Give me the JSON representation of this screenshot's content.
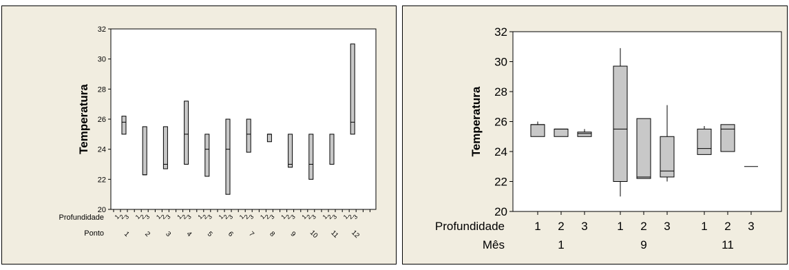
{
  "chart_data": [
    {
      "type": "boxplot",
      "ylabel": "Temperatura",
      "ylim": [
        20,
        32
      ],
      "yticks": [
        20,
        22,
        24,
        26,
        28,
        30,
        32
      ],
      "row_labels": [
        "Profundidade",
        "Ponto"
      ],
      "depth_levels": [
        "1",
        "2",
        "3"
      ],
      "points": [
        "1",
        "2",
        "3",
        "4",
        "5",
        "6",
        "7",
        "8",
        "9",
        "10",
        "11",
        "12"
      ],
      "boxes": [
        {
          "ponto": "1",
          "min": 25.0,
          "q1": 25.0,
          "median": 25.8,
          "q3": 26.2,
          "max": 26.2
        },
        {
          "ponto": "2",
          "min": 22.3,
          "q1": 22.3,
          "median": 22.3,
          "q3": 25.5,
          "max": 25.5
        },
        {
          "ponto": "3",
          "min": 22.7,
          "q1": 22.7,
          "median": 23.0,
          "q3": 25.5,
          "max": 25.5
        },
        {
          "ponto": "4",
          "min": 23.0,
          "q1": 23.0,
          "median": 25.0,
          "q3": 27.2,
          "max": 27.2
        },
        {
          "ponto": "5",
          "min": 22.2,
          "q1": 22.2,
          "median": 24.0,
          "q3": 25.0,
          "max": 25.0
        },
        {
          "ponto": "6",
          "min": 21.0,
          "q1": 21.0,
          "median": 24.0,
          "q3": 26.0,
          "max": 26.0
        },
        {
          "ponto": "7",
          "min": 23.8,
          "q1": 23.8,
          "median": 25.0,
          "q3": 26.0,
          "max": 26.0
        },
        {
          "ponto": "8",
          "min": 24.5,
          "q1": 24.5,
          "median": 25.0,
          "q3": 25.0,
          "max": 25.0
        },
        {
          "ponto": "9",
          "min": 22.8,
          "q1": 22.8,
          "median": 23.0,
          "q3": 25.0,
          "max": 25.0
        },
        {
          "ponto": "10",
          "min": 22.0,
          "q1": 22.0,
          "median": 23.0,
          "q3": 25.0,
          "max": 25.0
        },
        {
          "ponto": "11",
          "min": 23.0,
          "q1": 23.0,
          "median": 23.0,
          "q3": 25.0,
          "max": 25.0
        },
        {
          "ponto": "12",
          "min": 25.0,
          "q1": 25.0,
          "median": 25.8,
          "q3": 31.0,
          "max": 31.0
        }
      ]
    },
    {
      "type": "boxplot",
      "ylabel": "Temperatura",
      "ylim": [
        20,
        32
      ],
      "yticks": [
        20,
        22,
        24,
        26,
        28,
        30,
        32
      ],
      "row_labels": [
        "Profundidade",
        "Mês"
      ],
      "groups": [
        "1",
        "9",
        "11"
      ],
      "depth_levels": [
        "1",
        "2",
        "3"
      ],
      "boxes": [
        {
          "mes": "1",
          "profundidade": "1",
          "min": 25.0,
          "q1": 25.0,
          "median": 25.8,
          "q3": 25.8,
          "max": 26.0
        },
        {
          "mes": "1",
          "profundidade": "2",
          "min": 25.0,
          "q1": 25.0,
          "median": 25.5,
          "q3": 25.5,
          "max": 25.5
        },
        {
          "mes": "1",
          "profundidade": "3",
          "min": 25.0,
          "q1": 25.0,
          "median": 25.2,
          "q3": 25.3,
          "max": 25.5
        },
        {
          "mes": "9",
          "profundidade": "1",
          "min": 21.0,
          "q1": 22.0,
          "median": 25.5,
          "q3": 29.7,
          "max": 30.9
        },
        {
          "mes": "9",
          "profundidade": "2",
          "min": 22.2,
          "q1": 22.2,
          "median": 22.3,
          "q3": 26.2,
          "max": 26.2
        },
        {
          "mes": "9",
          "profundidade": "3",
          "min": 22.0,
          "q1": 22.3,
          "median": 22.7,
          "q3": 25.0,
          "max": 27.1
        },
        {
          "mes": "11",
          "profundidade": "1",
          "min": 23.8,
          "q1": 23.8,
          "median": 24.2,
          "q3": 25.5,
          "max": 25.7
        },
        {
          "mes": "11",
          "profundidade": "2",
          "min": 24.0,
          "q1": 24.0,
          "median": 25.5,
          "q3": 25.8,
          "max": 25.8
        },
        {
          "mes": "11",
          "profundidade": "3",
          "min": 23.0,
          "q1": 23.0,
          "median": 23.0,
          "q3": 23.0,
          "max": 23.0
        }
      ]
    }
  ]
}
